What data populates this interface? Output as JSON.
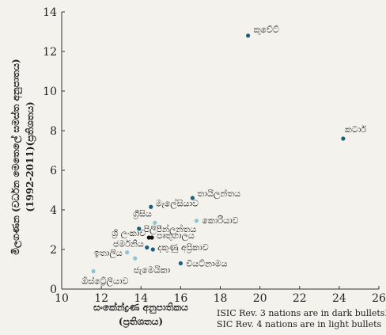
{
  "chart_data": {
    "type": "scatter",
    "xlabel": [
      "සංකේන්ද්‍රණ අනුපාතිකය",
      "(ප්‍රතිශතය)"
    ],
    "ylabel": [
      "මිලගණන (වර්ධන මෙතෙලේ සමස්ත අනුපාතය)",
      "(1992-2011)(ප්‍රතිශතය)"
    ],
    "xlim": [
      10,
      26
    ],
    "ylim": [
      0,
      14
    ],
    "x_ticks": [
      10,
      12,
      14,
      16,
      18,
      20,
      22,
      24,
      26
    ],
    "y_ticks": [
      0,
      2,
      4,
      6,
      8,
      10,
      12,
      14
    ],
    "grid": false,
    "colors": {
      "dark": "#1b5f7e",
      "light": "#8fc4d6",
      "highlight": "#111111",
      "axis": "#333333"
    },
    "notes": [
      "ISIC Rev. 3 nations are in dark bulletsI",
      "SIC Rev. 4 nations are in light bullets"
    ],
    "series": [
      {
        "style": "dark",
        "points": [
          {
            "label": "කුවේට්",
            "x": 19.4,
            "y": 12.8
          },
          {
            "label": "කටාර්",
            "x": 24.2,
            "y": 7.6
          },
          {
            "label": "තායිලන්තය",
            "x": 16.6,
            "y": 4.6
          },
          {
            "label": "මැලේසියාව",
            "x": 14.5,
            "y": 4.15
          },
          {
            "label": "පිලිපීන්ලන්තය",
            "x": 13.9,
            "y": 3.05
          },
          {
            "label": "ජර්මනිය",
            "x": 14.3,
            "y": 2.1
          },
          {
            "label": "දකුණු අප්‍රිකාව",
            "x": 14.6,
            "y": 2.0
          },
          {
            "label": "වියට්නාමය",
            "x": 16.0,
            "y": 1.3
          }
        ]
      },
      {
        "style": "light",
        "points": [
          {
            "label": "ග්‍රීසිය",
            "x": 14.7,
            "y": 3.35
          },
          {
            "label": "කොරියාව",
            "x": 16.8,
            "y": 3.45
          },
          {
            "label": "ඉතාලිය",
            "x": 13.3,
            "y": 1.85
          },
          {
            "label": "ජැමෙයිකා",
            "x": 13.7,
            "y": 1.55
          },
          {
            "label": "ඕස්ට්‍රේලියාව",
            "x": 11.6,
            "y": 0.9
          }
        ]
      },
      {
        "style": "highlight",
        "points": [
          {
            "label": "ශ්‍රී ලංකාව",
            "x": 14.4,
            "y": 2.6
          },
          {
            "label": "පෘතුගාලය",
            "x": 14.55,
            "y": 2.6
          }
        ]
      }
    ]
  }
}
